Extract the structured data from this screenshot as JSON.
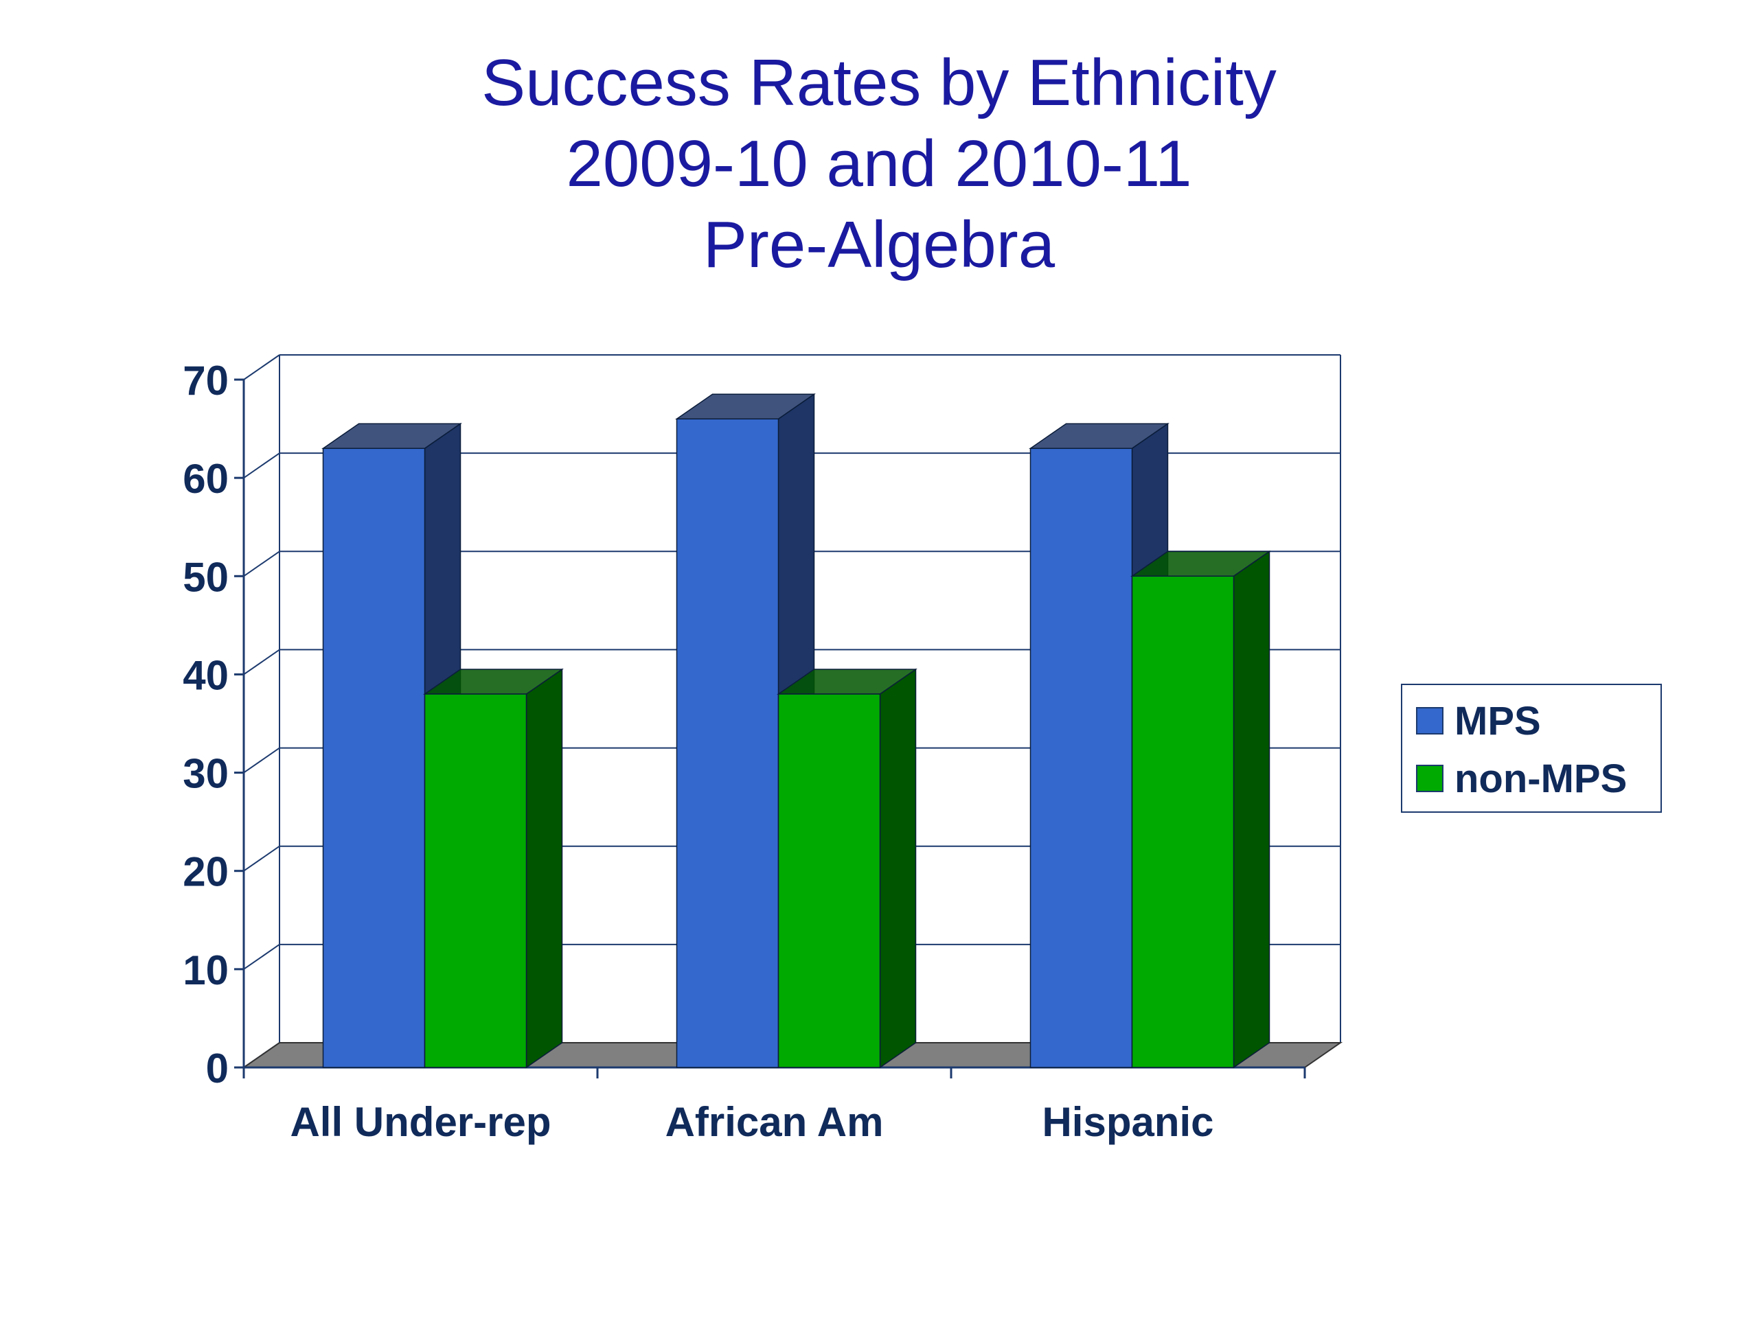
{
  "title_lines": [
    "Success Rates by Ethnicity",
    "2009-10 and 2010-11",
    "Pre-Algebra"
  ],
  "chart_data": {
    "type": "bar",
    "style": "3d-clustered",
    "categories": [
      "All Under-rep",
      "African Am",
      "Hispanic"
    ],
    "series": [
      {
        "name": "MPS",
        "values": [
          63,
          66,
          63
        ],
        "color": "#3468cc",
        "side_color": "#1e3566"
      },
      {
        "name": "non-MPS",
        "values": [
          38,
          38,
          50
        ],
        "color": "#00aa00",
        "side_color": "#005500"
      }
    ],
    "ylim": [
      0,
      70
    ],
    "yticks": [
      0,
      10,
      20,
      30,
      40,
      50,
      60,
      70
    ],
    "grid": true,
    "legend_position": "right",
    "floor_color": "#808080",
    "axis_color": "#1c3a6e",
    "label_color": "#102a5a"
  }
}
